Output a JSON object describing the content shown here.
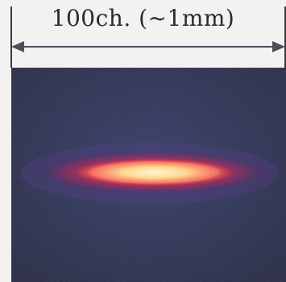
{
  "scale_bar": {
    "label": "100ch. (~1mm)"
  },
  "image": {
    "description_colors": {
      "background": "#2b3050",
      "glow_outer": "#c0284a",
      "glow_mid": "#ff3a3a",
      "core": "#ffe9a0"
    }
  }
}
